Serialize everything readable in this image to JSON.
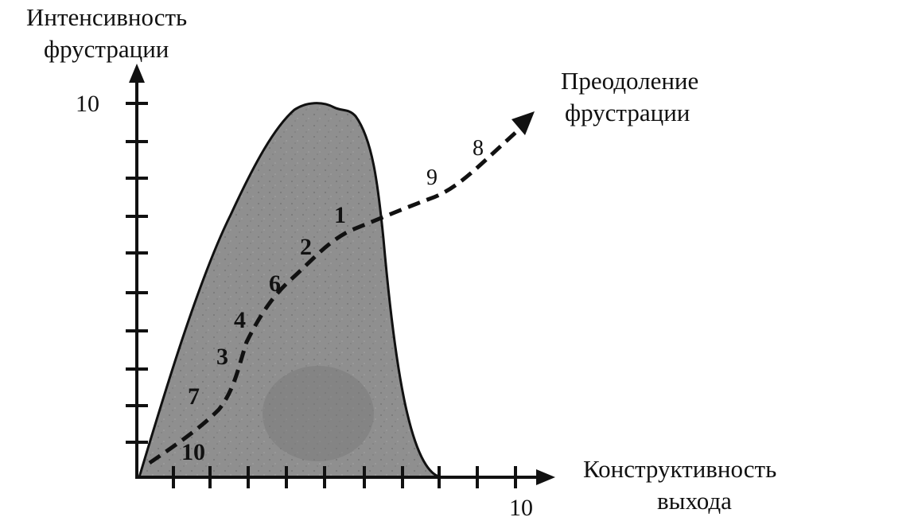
{
  "y_axis_title": [
    "Интенсивность",
    "фрустрации"
  ],
  "x_axis_title": [
    "Конструктивность",
    "выхода"
  ],
  "y_max_label": "10",
  "x_max_label": "10",
  "arrow_label": [
    "Преодоление",
    "фрустрации"
  ],
  "path_points": [
    "10",
    "7",
    "3",
    "4",
    "6",
    "2",
    "1",
    "9",
    "8"
  ],
  "colors": {
    "region_fill": "#8f8f8f",
    "ink": "#111111"
  }
}
